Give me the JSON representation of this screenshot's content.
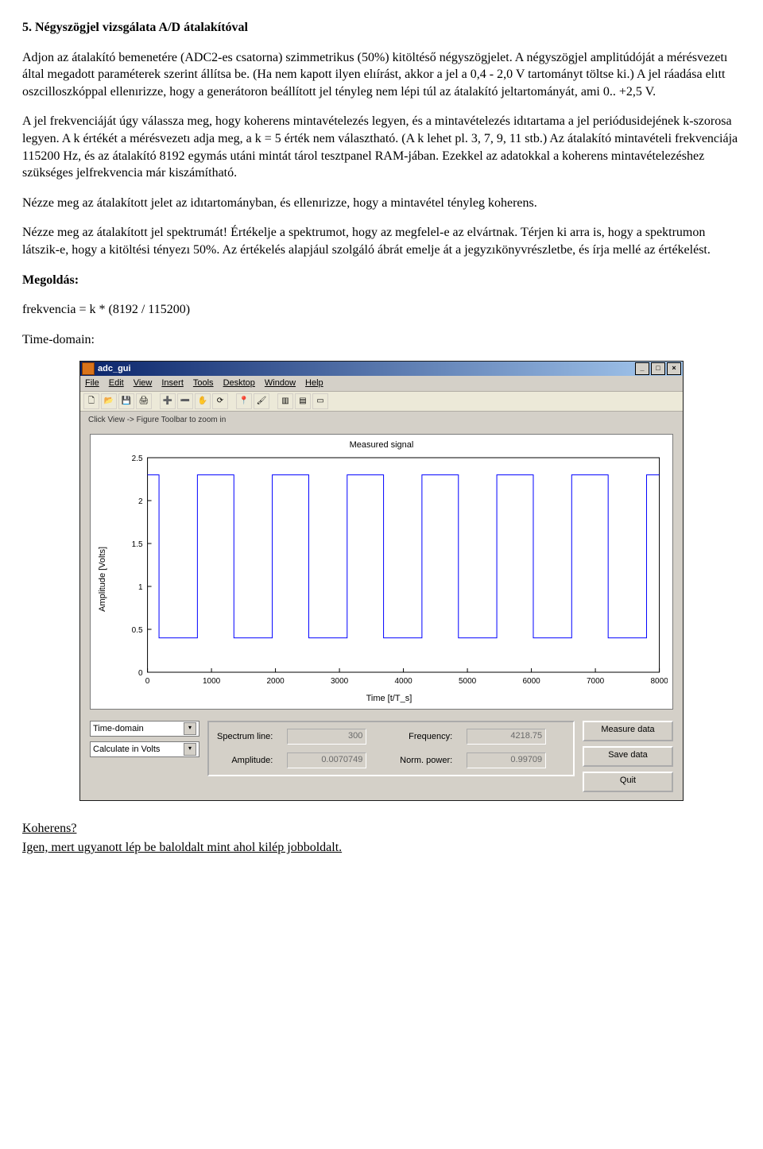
{
  "doc": {
    "heading": "5. Négyszögjel vizsgálata A/D átalakítóval",
    "p1": "Adjon az átalakító bemenetére (ADC2-es csatorna) szimmetrikus (50%) kitöltéső négyszögjelet. A négyszögjel amplitúdóját a mérésvezetı által megadott paraméterek szerint állítsa be. (Ha nem kapott ilyen elıírást, akkor a jel a 0,4 - 2,0 V tartományt töltse ki.) A jel ráadása elıtt oszcilloszkóppal ellenırizze, hogy a generátoron beállított jel tényleg nem lépi túl az átalakító jeltartományát, ami 0.. +2,5 V.",
    "p2": "A jel frekvenciáját úgy válassza meg, hogy koherens mintavételezés legyen, és a mintavételezés idıtartama a jel periódusidejének k-szorosa legyen. A k értékét a mérésvezetı adja meg, a k = 5 érték nem választható. (A k lehet pl. 3, 7, 9, 11 stb.) Az átalakító mintavételi frekvenciája 115200 Hz, és az átalakító 8192 egymás utáni mintát tárol tesztpanel RAM-jában. Ezekkel az adatokkal a koherens mintavételezéshez szükséges jelfrekvencia már kiszámítható.",
    "p3": "Nézze meg az átalakított jelet az idıtartományban, és ellenırizze, hogy a mintavétel tényleg koherens.",
    "p4": "Nézze meg az átalakított jel spektrumát! Értékelje a spektrumot, hogy az megfelel-e az elvártnak. Térjen ki arra is, hogy a spektrumon látszik-e, hogy a kitöltési tényezı 50%. Az értékelés alapjául szolgáló ábrát emelje át a jegyzıkönyvrészletbe, és írja mellé az értékelést.",
    "megoldas_label": "Megoldás:",
    "formula": "frekvencia = k * (8192 / 115200)",
    "time_domain_label": "Time-domain:",
    "koherens_q": "Koherens?",
    "koherens_a": "Igen, mert ugyanott lép be baloldalt mint ahol kilép jobboldalt."
  },
  "app": {
    "window_title": "adc_gui",
    "menus": [
      "File",
      "Edit",
      "View",
      "Insert",
      "Tools",
      "Desktop",
      "Window",
      "Help"
    ],
    "toolbar_icons": [
      "new-icon",
      "open-icon",
      "save-icon",
      "print-icon",
      "zoom-in-icon",
      "zoom-out-icon",
      "pan-icon",
      "rotate-icon",
      "data-cursor-icon",
      "brush-icon",
      "colorbar-icon",
      "legend-icon",
      "insert-axes-icon"
    ],
    "hint": "Click View -> Figure Toolbar to zoom in",
    "win_buttons": {
      "min": "_",
      "max": "□",
      "close": "×"
    },
    "plot": {
      "title": "Measured signal",
      "xlabel": "Time [t/T_s]",
      "ylabel": "Amplitude [Volts]",
      "type": "line",
      "xlim": [
        0,
        8000
      ],
      "ylim": [
        0,
        2.5
      ],
      "xticks": [
        0,
        1000,
        2000,
        3000,
        4000,
        5000,
        6000,
        7000,
        8000
      ],
      "yticks": [
        0,
        0.5,
        1,
        1.5,
        2,
        2.5
      ],
      "background_color": "#ffffff",
      "axis_color": "#000000",
      "line_color": "#0000ff",
      "line_width": 1,
      "low": 0.4,
      "high": 2.3,
      "transitions_x": [
        180,
        780,
        1350,
        1950,
        2520,
        3120,
        3690,
        4290,
        4860,
        5460,
        6030,
        6630,
        7200,
        7800
      ],
      "start_level": "high"
    },
    "controls": {
      "dropdown1": "Time-domain",
      "dropdown2": "Calculate in Volts",
      "spectrum_line_label": "Spectrum line:",
      "spectrum_line_value": "300",
      "frequency_label": "Frequency:",
      "frequency_value": "4218.75",
      "amplitude_label": "Amplitude:",
      "amplitude_value": "0.0070749",
      "norm_power_label": "Norm. power:",
      "norm_power_value": "0.99709",
      "btn_measure": "Measure data",
      "btn_save": "Save data",
      "btn_quit": "Quit"
    }
  }
}
